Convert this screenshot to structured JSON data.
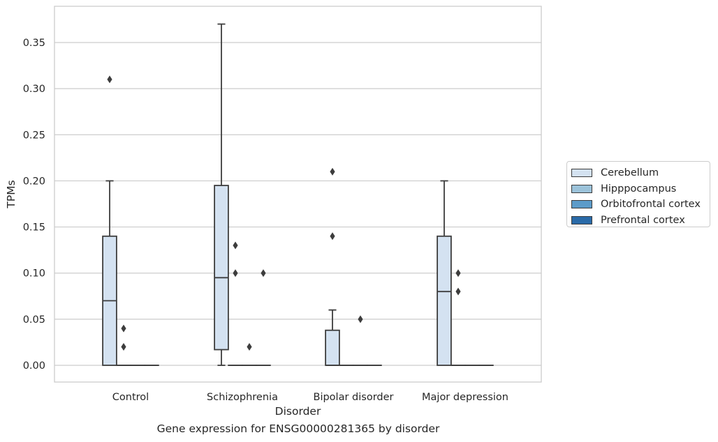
{
  "chart_data": {
    "type": "box",
    "caption": "Gene expression for ENSG00000281365 by disorder",
    "xlabel": "Disorder",
    "ylabel": "TPMs",
    "ylim": [
      -0.018,
      0.388
    ],
    "yticks": [
      0.0,
      0.05,
      0.1,
      0.15,
      0.2,
      0.25,
      0.3,
      0.35
    ],
    "ytick_labels": [
      "0.00",
      "0.05",
      "0.10",
      "0.15",
      "0.20",
      "0.25",
      "0.30",
      "0.35"
    ],
    "grid": "horizontal",
    "legend_position": "right",
    "categories": [
      "Control",
      "Schizophrenia",
      "Bipolar disorder",
      "Major depression"
    ],
    "series": [
      {
        "name": "Cerebellum",
        "color": "#d4e2f1",
        "boxes": [
          {
            "category": "Control",
            "whisker_low": 0.0,
            "q1": 0.0,
            "median": 0.07,
            "q3": 0.14,
            "whisker_high": 0.2,
            "outliers": [
              0.31
            ]
          },
          {
            "category": "Schizophrenia",
            "whisker_low": 0.0,
            "q1": 0.017,
            "median": 0.095,
            "q3": 0.195,
            "whisker_high": 0.37,
            "outliers": []
          },
          {
            "category": "Bipolar disorder",
            "whisker_low": 0.0,
            "q1": 0.0,
            "median": 0.0,
            "q3": 0.038,
            "whisker_high": 0.06,
            "outliers": [
              0.14,
              0.21
            ]
          },
          {
            "category": "Major depression",
            "whisker_low": 0.0,
            "q1": 0.0,
            "median": 0.08,
            "q3": 0.14,
            "whisker_high": 0.2,
            "outliers": []
          }
        ]
      },
      {
        "name": "Hipppocampus",
        "color": "#9cc3da",
        "boxes": [
          {
            "category": "Control",
            "whisker_low": 0.0,
            "q1": 0.0,
            "median": 0.0,
            "q3": 0.0,
            "whisker_high": 0.0,
            "outliers": [
              0.02,
              0.04
            ]
          },
          {
            "category": "Schizophrenia",
            "whisker_low": 0.0,
            "q1": 0.0,
            "median": 0.0,
            "q3": 0.0,
            "whisker_high": 0.0,
            "outliers": [
              0.1,
              0.13
            ]
          },
          {
            "category": "Bipolar disorder",
            "whisker_low": 0.0,
            "q1": 0.0,
            "median": 0.0,
            "q3": 0.0,
            "whisker_high": 0.0,
            "outliers": []
          },
          {
            "category": "Major depression",
            "whisker_low": 0.0,
            "q1": 0.0,
            "median": 0.0,
            "q3": 0.0,
            "whisker_high": 0.0,
            "outliers": [
              0.08,
              0.1
            ]
          }
        ]
      },
      {
        "name": "Orbitofrontal cortex",
        "color": "#5c9bc9",
        "boxes": [
          {
            "category": "Control",
            "whisker_low": 0.0,
            "q1": 0.0,
            "median": 0.0,
            "q3": 0.0,
            "whisker_high": 0.0,
            "outliers": []
          },
          {
            "category": "Schizophrenia",
            "whisker_low": 0.0,
            "q1": 0.0,
            "median": 0.0,
            "q3": 0.0,
            "whisker_high": 0.0,
            "outliers": [
              0.02
            ]
          },
          {
            "category": "Bipolar disorder",
            "whisker_low": 0.0,
            "q1": 0.0,
            "median": 0.0,
            "q3": 0.0,
            "whisker_high": 0.0,
            "outliers": [
              0.05
            ]
          },
          {
            "category": "Major depression",
            "whisker_low": 0.0,
            "q1": 0.0,
            "median": 0.0,
            "q3": 0.0,
            "whisker_high": 0.0,
            "outliers": []
          }
        ]
      },
      {
        "name": "Prefrontal cortex",
        "color": "#2a6aa8",
        "boxes": [
          {
            "category": "Control",
            "whisker_low": 0.0,
            "q1": 0.0,
            "median": 0.0,
            "q3": 0.0,
            "whisker_high": 0.0,
            "outliers": []
          },
          {
            "category": "Schizophrenia",
            "whisker_low": 0.0,
            "q1": 0.0,
            "median": 0.0,
            "q3": 0.0,
            "whisker_high": 0.0,
            "outliers": [
              0.1
            ]
          },
          {
            "category": "Bipolar disorder",
            "whisker_low": 0.0,
            "q1": 0.0,
            "median": 0.0,
            "q3": 0.0,
            "whisker_high": 0.0,
            "outliers": []
          },
          {
            "category": "Major depression",
            "whisker_low": 0.0,
            "q1": 0.0,
            "median": 0.0,
            "q3": 0.0,
            "whisker_high": 0.0,
            "outliers": []
          }
        ]
      }
    ]
  }
}
